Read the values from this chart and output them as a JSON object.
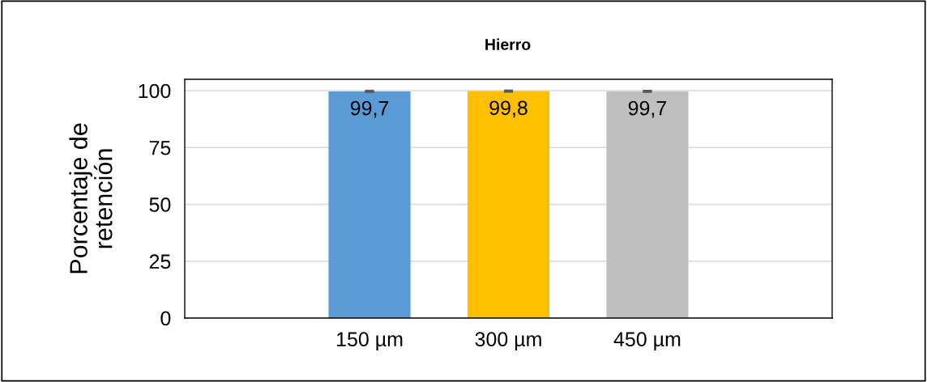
{
  "chart_data": {
    "type": "bar",
    "title": "Hierro",
    "ylabel": "Porcentaje de\nretención",
    "categories": [
      "150 µm",
      "300 µm",
      "450 µm"
    ],
    "values": [
      99.7,
      99.8,
      99.7
    ],
    "colors": [
      "#5b9bd5",
      "#ffc000",
      "#bfbfbf"
    ],
    "errors": [
      0.2,
      0.2,
      0.2
    ],
    "value_labels": [
      "99,7",
      "99,8",
      "99,7"
    ],
    "ylim": [
      0,
      105
    ],
    "yticks": [
      0,
      25,
      50,
      75,
      100
    ],
    "grid": "y",
    "legend": false
  }
}
